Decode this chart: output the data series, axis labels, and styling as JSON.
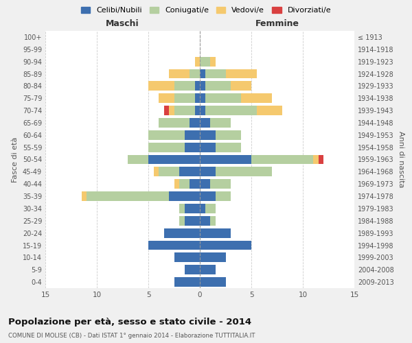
{
  "age_groups": [
    "0-4",
    "5-9",
    "10-14",
    "15-19",
    "20-24",
    "25-29",
    "30-34",
    "35-39",
    "40-44",
    "45-49",
    "50-54",
    "55-59",
    "60-64",
    "65-69",
    "70-74",
    "75-79",
    "80-84",
    "85-89",
    "90-94",
    "95-99",
    "100+"
  ],
  "birth_years": [
    "2009-2013",
    "2004-2008",
    "1999-2003",
    "1994-1998",
    "1989-1993",
    "1984-1988",
    "1979-1983",
    "1974-1978",
    "1969-1973",
    "1964-1968",
    "1959-1963",
    "1954-1958",
    "1949-1953",
    "1944-1948",
    "1939-1943",
    "1934-1938",
    "1929-1933",
    "1924-1928",
    "1919-1923",
    "1914-1918",
    "≤ 1913"
  ],
  "males": {
    "celibi": [
      2.5,
      1.5,
      2.5,
      5.0,
      3.5,
      1.5,
      1.5,
      3.0,
      1.0,
      2.0,
      5.0,
      1.5,
      1.5,
      1.0,
      0.5,
      0.5,
      0.5,
      0.0,
      0.0,
      0.0,
      0.0
    ],
    "coniugati": [
      0.0,
      0.0,
      0.0,
      0.0,
      0.0,
      0.5,
      0.5,
      8.0,
      1.0,
      2.0,
      2.0,
      3.5,
      3.5,
      3.0,
      2.0,
      2.0,
      2.0,
      1.0,
      0.0,
      0.0,
      0.0
    ],
    "vedovi": [
      0.0,
      0.0,
      0.0,
      0.0,
      0.0,
      0.0,
      0.0,
      0.5,
      0.5,
      0.5,
      0.0,
      0.0,
      0.0,
      0.0,
      0.5,
      1.5,
      2.5,
      2.0,
      0.5,
      0.0,
      0.0
    ],
    "divorziati": [
      0.0,
      0.0,
      0.0,
      0.0,
      0.0,
      0.0,
      0.0,
      0.0,
      0.0,
      0.0,
      0.0,
      0.0,
      0.0,
      0.0,
      0.5,
      0.0,
      0.0,
      0.0,
      0.0,
      0.0,
      0.0
    ]
  },
  "females": {
    "nubili": [
      2.5,
      1.5,
      2.5,
      5.0,
      3.0,
      1.0,
      0.5,
      1.5,
      1.0,
      1.5,
      5.0,
      1.5,
      1.5,
      1.0,
      0.5,
      0.5,
      0.5,
      0.5,
      0.0,
      0.0,
      0.0
    ],
    "coniugate": [
      0.0,
      0.0,
      0.0,
      0.0,
      0.0,
      0.5,
      1.0,
      1.5,
      2.0,
      5.5,
      6.0,
      2.5,
      2.5,
      2.0,
      5.0,
      3.5,
      2.5,
      2.0,
      1.0,
      0.0,
      0.0
    ],
    "vedove": [
      0.0,
      0.0,
      0.0,
      0.0,
      0.0,
      0.0,
      0.0,
      0.0,
      0.0,
      0.0,
      0.5,
      0.0,
      0.0,
      0.0,
      2.5,
      3.0,
      2.0,
      3.0,
      0.5,
      0.0,
      0.0
    ],
    "divorziate": [
      0.0,
      0.0,
      0.0,
      0.0,
      0.0,
      0.0,
      0.0,
      0.0,
      0.0,
      0.0,
      0.5,
      0.0,
      0.0,
      0.0,
      0.0,
      0.0,
      0.0,
      0.0,
      0.0,
      0.0,
      0.0
    ]
  },
  "colors": {
    "celibi": "#3d6faf",
    "coniugati": "#b5cfa0",
    "vedovi": "#f5c96e",
    "divorziati": "#d94040"
  },
  "xlim": 15,
  "title": "Popolazione per età, sesso e stato civile - 2014",
  "subtitle": "COMUNE DI MOLISE (CB) - Dati ISTAT 1° gennaio 2014 - Elaborazione TUTTITALIA.IT",
  "ylabel_left": "Fasce di età",
  "ylabel_right": "Anni di nascita",
  "xlabel_left": "Maschi",
  "xlabel_right": "Femmine",
  "legend_labels": [
    "Celibi/Nubili",
    "Coniugati/e",
    "Vedovi/e",
    "Divorziati/e"
  ],
  "bg_color": "#f0f0f0",
  "plot_bg_color": "#ffffff"
}
